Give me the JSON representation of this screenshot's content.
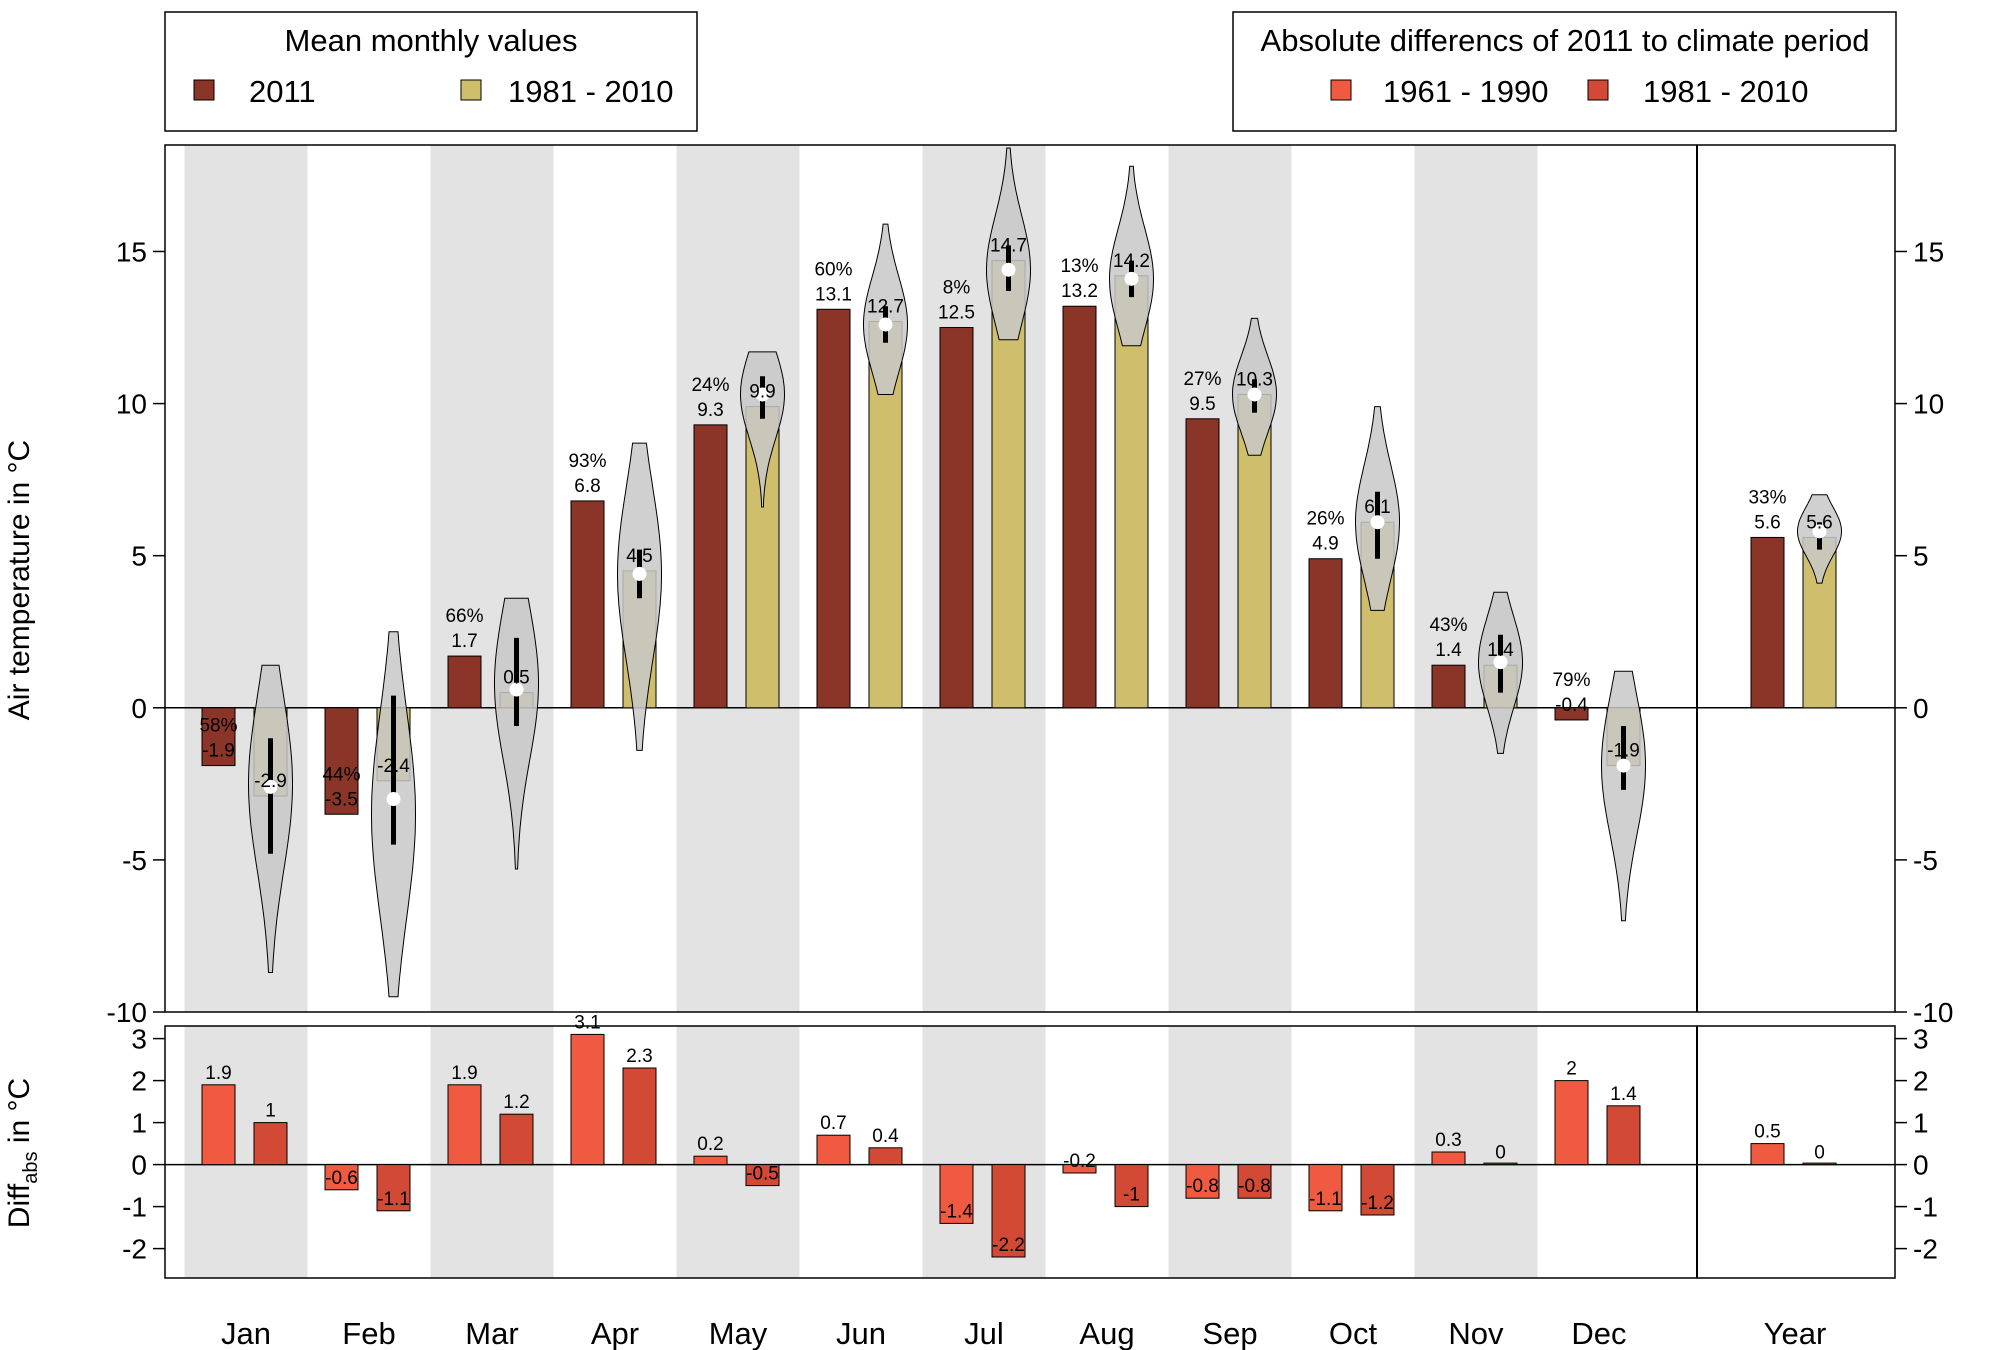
{
  "chart_data": {
    "type": "bar",
    "categories": [
      "Jan",
      "Feb",
      "Mar",
      "Apr",
      "May",
      "Jun",
      "Jul",
      "Aug",
      "Sep",
      "Oct",
      "Nov",
      "Dec",
      "Year"
    ],
    "top_panel": {
      "ylabel": "Air temperature in °C",
      "ylim": [
        -10,
        18.5
      ],
      "yticks": [
        -10,
        -5,
        0,
        5,
        10,
        15
      ],
      "ytick_labels": [
        "-10",
        "-5",
        "0",
        "5",
        "10",
        "15"
      ],
      "series": [
        {
          "name": "2011",
          "color": "#8b3528",
          "values": [
            -1.9,
            -3.5,
            1.7,
            6.8,
            9.3,
            13.1,
            12.5,
            13.2,
            9.5,
            4.9,
            1.4,
            -0.4,
            5.6
          ],
          "labels": [
            "-1.9",
            "-3.5",
            "1.7",
            "6.8",
            "9.3",
            "13.1",
            "12.5",
            "13.2",
            "9.5",
            "4.9",
            "1.4",
            "-0.4",
            "5.6"
          ],
          "percentiles": [
            "58%",
            "44%",
            "66%",
            "93%",
            "24%",
            "60%",
            "8%",
            "13%",
            "27%",
            "26%",
            "43%",
            "79%",
            "33%"
          ]
        },
        {
          "name": "1981 - 2010",
          "color": "#cfbf6c",
          "values": [
            -2.9,
            -2.4,
            0.5,
            4.5,
            9.9,
            12.7,
            14.7,
            14.2,
            10.3,
            6.1,
            1.4,
            -1.9,
            5.6
          ],
          "labels": [
            "-2.9",
            "-2.4",
            "0.5",
            "4.5",
            "9.9",
            "12.7",
            "14.7",
            "14.2",
            "10.3",
            "6.1",
            "1.4",
            "-1.9",
            "5.6"
          ]
        }
      ],
      "violins": [
        {
          "min": -8.7,
          "max": 1.4,
          "q1": -4.8,
          "q3": -1.0,
          "median": -2.6,
          "peak": -2.5
        },
        {
          "min": -9.5,
          "max": 2.5,
          "q1": -4.5,
          "q3": 0.4,
          "median": -3.0,
          "peak": -3.5
        },
        {
          "min": -5.3,
          "max": 3.6,
          "q1": -0.6,
          "q3": 2.3,
          "median": 0.6,
          "peak": 0.8
        },
        {
          "min": -1.4,
          "max": 8.7,
          "q1": 3.6,
          "q3": 5.2,
          "median": 4.4,
          "peak": 4.4
        },
        {
          "min": 6.6,
          "max": 11.7,
          "q1": 9.5,
          "q3": 10.9,
          "median": 10.3,
          "peak": 10.3
        },
        {
          "min": 10.3,
          "max": 15.9,
          "q1": 12.0,
          "q3": 13.2,
          "median": 12.6,
          "peak": 12.6
        },
        {
          "min": 12.1,
          "max": 18.4,
          "q1": 13.7,
          "q3": 15.2,
          "median": 14.4,
          "peak": 14.4
        },
        {
          "min": 11.9,
          "max": 17.8,
          "q1": 13.5,
          "q3": 14.7,
          "median": 14.1,
          "peak": 14.1
        },
        {
          "min": 8.3,
          "max": 12.8,
          "q1": 9.7,
          "q3": 10.8,
          "median": 10.3,
          "peak": 10.3
        },
        {
          "min": 3.2,
          "max": 9.9,
          "q1": 4.9,
          "q3": 7.1,
          "median": 6.1,
          "peak": 6.1
        },
        {
          "min": -1.5,
          "max": 3.8,
          "q1": 0.5,
          "q3": 2.4,
          "median": 1.5,
          "peak": 1.5
        },
        {
          "min": -7.0,
          "max": 1.2,
          "q1": -2.7,
          "q3": -0.6,
          "median": -1.9,
          "peak": -1.9
        },
        {
          "min": 4.1,
          "max": 7.0,
          "q1": 5.2,
          "q3": 6.1,
          "median": 5.8,
          "peak": 5.8
        }
      ]
    },
    "bottom_panel": {
      "ylabel_main": "Diff",
      "ylabel_sub": "abs",
      "ylabel_tail": " in °C",
      "ylim": [
        -2.7,
        3.3
      ],
      "yticks": [
        -2,
        -1,
        0,
        1,
        2,
        3
      ],
      "ytick_labels": [
        "-2",
        "-1",
        "0",
        "1",
        "2",
        "3"
      ],
      "series": [
        {
          "name": "1961 - 1990",
          "color": "#f05a40",
          "values": [
            1.9,
            -0.6,
            1.9,
            3.1,
            0.2,
            0.7,
            -1.4,
            -0.2,
            -0.8,
            -1.1,
            0.3,
            2.0,
            0.5
          ],
          "labels": [
            "1.9",
            "-0.6",
            "1.9",
            "3.1",
            "0.2",
            "0.7",
            "-1.4",
            "-0.2",
            "-0.8",
            "-1.1",
            "0.3",
            "2",
            "0.5"
          ]
        },
        {
          "name": "1981 - 2010",
          "color": "#d24a35",
          "values": [
            1.0,
            -1.1,
            1.2,
            2.3,
            -0.5,
            0.4,
            -2.2,
            -1.0,
            -0.8,
            -1.2,
            0.0,
            1.4,
            0.0
          ],
          "labels": [
            "1",
            "-1.1",
            "1.2",
            "2.3",
            "-0.5",
            "0.4",
            "-2.2",
            "-1",
            "-0.8",
            "-1.2",
            "0",
            "1.4",
            "0"
          ]
        }
      ]
    }
  },
  "legend_left": {
    "title": "Mean monthly values",
    "items": [
      {
        "label": "2011",
        "color": "#8b3528"
      },
      {
        "label": "1981 - 2010",
        "color": "#cfbf6c"
      }
    ]
  },
  "legend_right": {
    "title": "Absolute differencs of 2011 to climate period",
    "items": [
      {
        "label": "1961 - 1990",
        "color": "#f05a40"
      },
      {
        "label": "1981 - 2010",
        "color": "#d24a35"
      }
    ]
  },
  "colors": {
    "shade": "#e3e3e3",
    "violin": "#c8c8c8"
  }
}
